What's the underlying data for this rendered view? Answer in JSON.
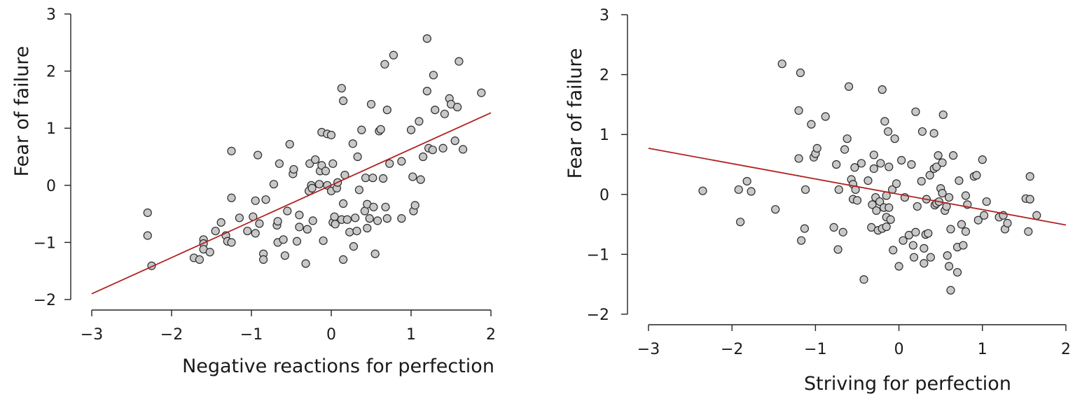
{
  "chart_data": [
    {
      "type": "scatter",
      "xlabel": "Negative reactions for perfection",
      "ylabel": "Fear of failure",
      "xlim": [
        -3,
        2
      ],
      "ylim": [
        -2,
        3
      ],
      "xticks": [
        "−3",
        "−2",
        "−1",
        "0",
        "1",
        "2"
      ],
      "yticks": [
        "−2",
        "−1",
        "0",
        "1",
        "2",
        "3"
      ],
      "point_color": "#c8c8c8",
      "line_color": "#b22222",
      "fit_line": {
        "x": [
          -3,
          2
        ],
        "y": [
          -1.9,
          1.27
        ]
      },
      "points": [
        [
          -2.3,
          -0.48
        ],
        [
          -2.3,
          -0.88
        ],
        [
          -2.25,
          -1.41
        ],
        [
          -1.72,
          -1.27
        ],
        [
          -1.65,
          -1.3
        ],
        [
          -1.6,
          -0.95
        ],
        [
          -1.6,
          -1.02
        ],
        [
          -1.6,
          -1.12
        ],
        [
          -1.52,
          -1.17
        ],
        [
          -1.45,
          -0.8
        ],
        [
          -1.38,
          -0.65
        ],
        [
          -1.32,
          -0.88
        ],
        [
          -1.3,
          -0.98
        ],
        [
          -1.25,
          -1.0
        ],
        [
          -1.25,
          -0.22
        ],
        [
          -1.25,
          0.6
        ],
        [
          -1.15,
          -0.57
        ],
        [
          -1.05,
          -0.8
        ],
        [
          -0.98,
          -0.55
        ],
        [
          -0.95,
          -0.84
        ],
        [
          -0.95,
          -0.27
        ],
        [
          -0.92,
          0.53
        ],
        [
          -0.9,
          -0.67
        ],
        [
          -0.85,
          -1.2
        ],
        [
          -0.85,
          -1.3
        ],
        [
          -0.82,
          -0.25
        ],
        [
          -0.72,
          0.02
        ],
        [
          -0.68,
          -0.7
        ],
        [
          -0.67,
          -0.63
        ],
        [
          -0.67,
          -1.0
        ],
        [
          -0.65,
          0.38
        ],
        [
          -0.6,
          -0.95
        ],
        [
          -0.58,
          -1.23
        ],
        [
          -0.55,
          -0.45
        ],
        [
          -0.52,
          0.72
        ],
        [
          -0.48,
          0.2
        ],
        [
          -0.47,
          0.28
        ],
        [
          -0.43,
          -0.98
        ],
        [
          -0.4,
          -0.73
        ],
        [
          -0.4,
          -0.52
        ],
        [
          -0.32,
          -1.37
        ],
        [
          -0.3,
          -0.77
        ],
        [
          -0.28,
          -0.1
        ],
        [
          -0.27,
          0.38
        ],
        [
          -0.25,
          0.0
        ],
        [
          -0.24,
          -0.05
        ],
        [
          -0.23,
          -0.62
        ],
        [
          -0.2,
          0.45
        ],
        [
          -0.15,
          0.02
        ],
        [
          -0.14,
          0.25
        ],
        [
          -0.12,
          0.93
        ],
        [
          -0.12,
          0.35
        ],
        [
          -0.1,
          -0.97
        ],
        [
          -0.07,
          0.25
        ],
        [
          -0.05,
          0.0
        ],
        [
          -0.05,
          0.9
        ],
        [
          0.0,
          0.88
        ],
        [
          0.0,
          -0.1
        ],
        [
          0.02,
          0.38
        ],
        [
          0.02,
          -0.65
        ],
        [
          0.04,
          -0.55
        ],
        [
          0.05,
          -0.68
        ],
        [
          0.07,
          -0.05
        ],
        [
          0.08,
          0.05
        ],
        [
          0.13,
          1.7
        ],
        [
          0.13,
          -0.6
        ],
        [
          0.15,
          -1.3
        ],
        [
          0.15,
          -0.32
        ],
        [
          0.15,
          1.48
        ],
        [
          0.17,
          0.18
        ],
        [
          0.2,
          -0.6
        ],
        [
          0.23,
          -0.82
        ],
        [
          0.27,
          0.73
        ],
        [
          0.28,
          -1.07
        ],
        [
          0.3,
          -0.57
        ],
        [
          0.32,
          -0.8
        ],
        [
          0.33,
          0.5
        ],
        [
          0.35,
          -0.08
        ],
        [
          0.38,
          0.97
        ],
        [
          0.42,
          -0.45
        ],
        [
          0.43,
          0.13
        ],
        [
          0.45,
          -0.33
        ],
        [
          0.45,
          -0.75
        ],
        [
          0.48,
          -0.58
        ],
        [
          0.5,
          1.42
        ],
        [
          0.52,
          0.13
        ],
        [
          0.53,
          -0.38
        ],
        [
          0.55,
          -1.2
        ],
        [
          0.58,
          -0.62
        ],
        [
          0.6,
          0.95
        ],
        [
          0.62,
          0.98
        ],
        [
          0.65,
          0.12
        ],
        [
          0.67,
          2.12
        ],
        [
          0.68,
          -0.38
        ],
        [
          0.7,
          1.32
        ],
        [
          0.7,
          -0.58
        ],
        [
          0.73,
          0.38
        ],
        [
          0.78,
          2.28
        ],
        [
          0.88,
          0.42
        ],
        [
          0.88,
          -0.58
        ],
        [
          1.0,
          0.97
        ],
        [
          1.02,
          0.15
        ],
        [
          1.03,
          -0.45
        ],
        [
          1.05,
          -0.35
        ],
        [
          1.1,
          1.12
        ],
        [
          1.12,
          0.1
        ],
        [
          1.15,
          0.5
        ],
        [
          1.2,
          1.65
        ],
        [
          1.2,
          2.57
        ],
        [
          1.22,
          0.65
        ],
        [
          1.27,
          0.62
        ],
        [
          1.28,
          1.93
        ],
        [
          1.3,
          1.32
        ],
        [
          1.4,
          0.65
        ],
        [
          1.42,
          1.25
        ],
        [
          1.48,
          1.52
        ],
        [
          1.5,
          1.42
        ],
        [
          1.55,
          0.78
        ],
        [
          1.58,
          1.37
        ],
        [
          1.6,
          2.17
        ],
        [
          1.65,
          0.63
        ],
        [
          1.88,
          1.62
        ]
      ]
    },
    {
      "type": "scatter",
      "xlabel": "Striving for perfection",
      "ylabel": "Fear of failure",
      "xlim": [
        -3,
        2
      ],
      "ylim": [
        -2,
        3
      ],
      "xticks": [
        "−3",
        "−2",
        "−1",
        "0",
        "1",
        "2"
      ],
      "yticks": [
        "−2",
        "−1",
        "0",
        "1",
        "2",
        "3"
      ],
      "point_color": "#c8c8c8",
      "line_color": "#b22222",
      "fit_line": {
        "x": [
          -3,
          2
        ],
        "y": [
          0.77,
          -0.51
        ]
      },
      "points": [
        [
          -2.35,
          0.06
        ],
        [
          -1.92,
          0.08
        ],
        [
          -1.9,
          -0.46
        ],
        [
          -1.82,
          0.22
        ],
        [
          -1.77,
          0.05
        ],
        [
          -1.48,
          -0.25
        ],
        [
          -1.4,
          2.18
        ],
        [
          -1.2,
          1.4
        ],
        [
          -1.2,
          0.6
        ],
        [
          -1.18,
          2.03
        ],
        [
          -1.17,
          -0.77
        ],
        [
          -1.13,
          -0.57
        ],
        [
          -1.12,
          0.08
        ],
        [
          -1.05,
          1.17
        ],
        [
          -1.02,
          0.62
        ],
        [
          -1.0,
          0.68
        ],
        [
          -0.98,
          0.77
        ],
        [
          -0.88,
          1.3
        ],
        [
          -0.78,
          -0.55
        ],
        [
          -0.75,
          0.5
        ],
        [
          -0.73,
          -0.92
        ],
        [
          -0.72,
          0.08
        ],
        [
          -0.67,
          -0.63
        ],
        [
          -0.65,
          0.75
        ],
        [
          -0.62,
          0.93
        ],
        [
          -0.6,
          1.8
        ],
        [
          -0.57,
          0.25
        ],
        [
          -0.55,
          0.17
        ],
        [
          -0.55,
          -0.08
        ],
        [
          -0.53,
          0.45
        ],
        [
          -0.52,
          0.08
        ],
        [
          -0.5,
          -0.1
        ],
        [
          -0.45,
          0.52
        ],
        [
          -0.42,
          -1.42
        ],
        [
          -0.37,
          0.23
        ],
        [
          -0.33,
          -0.55
        ],
        [
          -0.32,
          -0.17
        ],
        [
          -0.3,
          0.66
        ],
        [
          -0.3,
          0.43
        ],
        [
          -0.28,
          -0.05
        ],
        [
          -0.27,
          -0.27
        ],
        [
          -0.25,
          -0.6
        ],
        [
          -0.23,
          -0.12
        ],
        [
          -0.22,
          0.52
        ],
        [
          -0.2,
          1.75
        ],
        [
          -0.2,
          -0.57
        ],
        [
          -0.18,
          -0.22
        ],
        [
          -0.17,
          1.22
        ],
        [
          -0.15,
          -0.02
        ],
        [
          -0.15,
          -0.38
        ],
        [
          -0.15,
          -0.54
        ],
        [
          -0.13,
          1.05
        ],
        [
          -0.12,
          0.46
        ],
        [
          -0.12,
          -0.22
        ],
        [
          -0.1,
          -0.42
        ],
        [
          -0.08,
          0.08
        ],
        [
          -0.07,
          -0.93
        ],
        [
          -0.05,
          0.93
        ],
        [
          -0.03,
          0.18
        ],
        [
          0.0,
          -1.2
        ],
        [
          0.03,
          0.57
        ],
        [
          0.05,
          -0.77
        ],
        [
          0.07,
          -0.05
        ],
        [
          0.12,
          -0.68
        ],
        [
          0.15,
          0.5
        ],
        [
          0.17,
          -0.85
        ],
        [
          0.18,
          -1.05
        ],
        [
          0.2,
          1.38
        ],
        [
          0.2,
          -0.63
        ],
        [
          0.22,
          -0.2
        ],
        [
          0.27,
          0.22
        ],
        [
          0.28,
          1.05
        ],
        [
          0.3,
          -1.15
        ],
        [
          0.3,
          -0.9
        ],
        [
          0.32,
          -0.67
        ],
        [
          0.33,
          -0.08
        ],
        [
          0.35,
          -0.65
        ],
        [
          0.37,
          0.32
        ],
        [
          0.38,
          -1.05
        ],
        [
          0.42,
          0.43
        ],
        [
          0.42,
          1.02
        ],
        [
          0.43,
          -0.18
        ],
        [
          0.45,
          0.46
        ],
        [
          0.45,
          -0.15
        ],
        [
          0.47,
          0.65
        ],
        [
          0.48,
          -0.12
        ],
        [
          0.5,
          0.1
        ],
        [
          0.52,
          0.53
        ],
        [
          0.52,
          0.02
        ],
        [
          0.53,
          1.33
        ],
        [
          0.55,
          -0.27
        ],
        [
          0.57,
          -0.2
        ],
        [
          0.58,
          -1.02
        ],
        [
          0.6,
          -0.05
        ],
        [
          0.6,
          -1.2
        ],
        [
          0.62,
          -1.6
        ],
        [
          0.62,
          -0.58
        ],
        [
          0.65,
          0.65
        ],
        [
          0.7,
          -1.3
        ],
        [
          0.7,
          -0.88
        ],
        [
          0.72,
          0.23
        ],
        [
          0.75,
          -0.5
        ],
        [
          0.77,
          -0.85
        ],
        [
          0.8,
          -0.02
        ],
        [
          0.8,
          -0.62
        ],
        [
          0.82,
          -0.17
        ],
        [
          0.9,
          0.3
        ],
        [
          0.93,
          0.32
        ],
        [
          0.95,
          -0.43
        ],
        [
          1.0,
          0.58
        ],
        [
          1.02,
          -0.35
        ],
        [
          1.05,
          -0.12
        ],
        [
          1.2,
          -0.38
        ],
        [
          1.25,
          -0.35
        ],
        [
          1.27,
          -0.58
        ],
        [
          1.3,
          -0.48
        ],
        [
          1.52,
          -0.07
        ],
        [
          1.55,
          -0.62
        ],
        [
          1.57,
          0.3
        ],
        [
          1.57,
          -0.08
        ],
        [
          1.65,
          -0.35
        ]
      ]
    }
  ]
}
